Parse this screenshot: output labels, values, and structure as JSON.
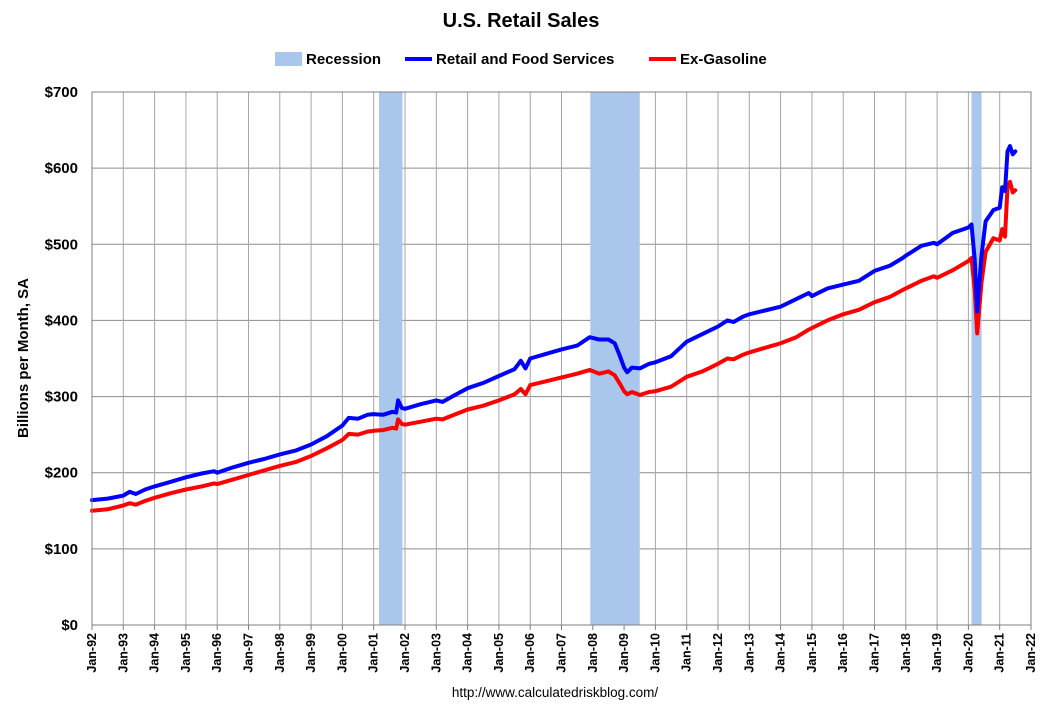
{
  "chart_data": {
    "type": "line",
    "title": "U.S. Retail Sales",
    "ylabel": "Billions per Month, SA",
    "xlabel": "",
    "source": "http://www.calculatedriskblog.com/",
    "ylim": [
      0,
      700
    ],
    "xlim": [
      1992.0,
      2022.0
    ],
    "yticks": [
      0,
      100,
      200,
      300,
      400,
      500,
      600,
      700
    ],
    "ytick_labels": [
      "$0",
      "$100",
      "$200",
      "$300",
      "$400",
      "$500",
      "$600",
      "$700"
    ],
    "xtick_labels": [
      "Jan-92",
      "Jan-93",
      "Jan-94",
      "Jan-95",
      "Jan-96",
      "Jan-97",
      "Jan-98",
      "Jan-99",
      "Jan-00",
      "Jan-01",
      "Jan-02",
      "Jan-03",
      "Jan-04",
      "Jan-05",
      "Jan-06",
      "Jan-07",
      "Jan-08",
      "Jan-09",
      "Jan-10",
      "Jan-11",
      "Jan-12",
      "Jan-13",
      "Jan-14",
      "Jan-15",
      "Jan-16",
      "Jan-17",
      "Jan-18",
      "Jan-19",
      "Jan-20",
      "Jan-21",
      "Jan-22"
    ],
    "grid": true,
    "legend_position": "top",
    "recessions": [
      {
        "start": 2001.17,
        "end": 2001.92
      },
      {
        "start": 2007.92,
        "end": 2009.5
      },
      {
        "start": 2020.1,
        "end": 2020.42
      }
    ],
    "series": [
      {
        "name": "Retail and Food Services",
        "color": "#0000ff",
        "points": [
          [
            1992.0,
            164
          ],
          [
            1992.5,
            166
          ],
          [
            1993.0,
            170
          ],
          [
            1993.2,
            175
          ],
          [
            1993.4,
            172
          ],
          [
            1993.7,
            178
          ],
          [
            1994.0,
            182
          ],
          [
            1994.5,
            188
          ],
          [
            1995.0,
            194
          ],
          [
            1995.5,
            199
          ],
          [
            1995.9,
            202
          ],
          [
            1996.0,
            200
          ],
          [
            1996.5,
            207
          ],
          [
            1997.0,
            213
          ],
          [
            1997.5,
            218
          ],
          [
            1998.0,
            224
          ],
          [
            1998.5,
            229
          ],
          [
            1999.0,
            237
          ],
          [
            1999.5,
            248
          ],
          [
            2000.0,
            262
          ],
          [
            2000.2,
            272
          ],
          [
            2000.5,
            271
          ],
          [
            2000.8,
            276
          ],
          [
            2001.0,
            277
          ],
          [
            2001.3,
            276
          ],
          [
            2001.6,
            280
          ],
          [
            2001.72,
            279
          ],
          [
            2001.78,
            295
          ],
          [
            2001.9,
            285
          ],
          [
            2002.0,
            284
          ],
          [
            2002.5,
            290
          ],
          [
            2003.0,
            295
          ],
          [
            2003.2,
            293
          ],
          [
            2003.5,
            300
          ],
          [
            2004.0,
            311
          ],
          [
            2004.5,
            318
          ],
          [
            2005.0,
            327
          ],
          [
            2005.5,
            336
          ],
          [
            2005.7,
            347
          ],
          [
            2005.85,
            337
          ],
          [
            2006.0,
            350
          ],
          [
            2006.5,
            356
          ],
          [
            2007.0,
            362
          ],
          [
            2007.5,
            367
          ],
          [
            2007.9,
            378
          ],
          [
            2008.2,
            375
          ],
          [
            2008.5,
            375
          ],
          [
            2008.7,
            370
          ],
          [
            2008.85,
            355
          ],
          [
            2009.0,
            338
          ],
          [
            2009.1,
            332
          ],
          [
            2009.25,
            338
          ],
          [
            2009.5,
            337
          ],
          [
            2009.8,
            343
          ],
          [
            2010.0,
            345
          ],
          [
            2010.5,
            353
          ],
          [
            2011.0,
            372
          ],
          [
            2011.5,
            382
          ],
          [
            2012.0,
            392
          ],
          [
            2012.3,
            400
          ],
          [
            2012.5,
            398
          ],
          [
            2012.8,
            405
          ],
          [
            2013.0,
            408
          ],
          [
            2013.5,
            413
          ],
          [
            2014.0,
            418
          ],
          [
            2014.5,
            428
          ],
          [
            2014.9,
            436
          ],
          [
            2015.0,
            432
          ],
          [
            2015.5,
            442
          ],
          [
            2016.0,
            447
          ],
          [
            2016.5,
            452
          ],
          [
            2017.0,
            465
          ],
          [
            2017.5,
            472
          ],
          [
            2017.9,
            482
          ],
          [
            2018.0,
            485
          ],
          [
            2018.5,
            498
          ],
          [
            2018.9,
            502
          ],
          [
            2019.0,
            500
          ],
          [
            2019.5,
            515
          ],
          [
            2020.0,
            522
          ],
          [
            2020.1,
            526
          ],
          [
            2020.2,
            480
          ],
          [
            2020.28,
            412
          ],
          [
            2020.42,
            485
          ],
          [
            2020.55,
            530
          ],
          [
            2020.8,
            545
          ],
          [
            2021.0,
            548
          ],
          [
            2021.08,
            575
          ],
          [
            2021.17,
            570
          ],
          [
            2021.25,
            622
          ],
          [
            2021.33,
            629
          ],
          [
            2021.42,
            618
          ],
          [
            2021.5,
            622
          ]
        ]
      },
      {
        "name": "Ex-Gasoline",
        "color": "#ff0000",
        "points": [
          [
            1992.0,
            150
          ],
          [
            1992.5,
            152
          ],
          [
            1993.0,
            157
          ],
          [
            1993.2,
            160
          ],
          [
            1993.4,
            158
          ],
          [
            1993.7,
            163
          ],
          [
            1994.0,
            167
          ],
          [
            1994.5,
            173
          ],
          [
            1995.0,
            178
          ],
          [
            1995.5,
            182
          ],
          [
            1995.9,
            186
          ],
          [
            1996.0,
            185
          ],
          [
            1996.5,
            191
          ],
          [
            1997.0,
            197
          ],
          [
            1997.5,
            203
          ],
          [
            1998.0,
            209
          ],
          [
            1998.5,
            214
          ],
          [
            1999.0,
            222
          ],
          [
            1999.5,
            232
          ],
          [
            2000.0,
            243
          ],
          [
            2000.2,
            251
          ],
          [
            2000.5,
            250
          ],
          [
            2000.8,
            254
          ],
          [
            2001.0,
            255
          ],
          [
            2001.3,
            256
          ],
          [
            2001.6,
            259
          ],
          [
            2001.72,
            258
          ],
          [
            2001.78,
            270
          ],
          [
            2001.9,
            264
          ],
          [
            2002.0,
            263
          ],
          [
            2002.5,
            267
          ],
          [
            2003.0,
            271
          ],
          [
            2003.2,
            270
          ],
          [
            2003.5,
            275
          ],
          [
            2004.0,
            283
          ],
          [
            2004.5,
            288
          ],
          [
            2005.0,
            295
          ],
          [
            2005.5,
            303
          ],
          [
            2005.7,
            310
          ],
          [
            2005.85,
            303
          ],
          [
            2006.0,
            315
          ],
          [
            2006.5,
            320
          ],
          [
            2007.0,
            325
          ],
          [
            2007.5,
            330
          ],
          [
            2007.9,
            335
          ],
          [
            2008.2,
            330
          ],
          [
            2008.5,
            333
          ],
          [
            2008.7,
            328
          ],
          [
            2008.85,
            318
          ],
          [
            2009.0,
            307
          ],
          [
            2009.1,
            303
          ],
          [
            2009.25,
            306
          ],
          [
            2009.5,
            302
          ],
          [
            2009.8,
            306
          ],
          [
            2010.0,
            307
          ],
          [
            2010.5,
            313
          ],
          [
            2011.0,
            326
          ],
          [
            2011.5,
            333
          ],
          [
            2012.0,
            343
          ],
          [
            2012.3,
            350
          ],
          [
            2012.5,
            349
          ],
          [
            2012.8,
            355
          ],
          [
            2013.0,
            358
          ],
          [
            2013.5,
            364
          ],
          [
            2014.0,
            370
          ],
          [
            2014.5,
            378
          ],
          [
            2014.9,
            388
          ],
          [
            2015.0,
            390
          ],
          [
            2015.5,
            400
          ],
          [
            2016.0,
            408
          ],
          [
            2016.5,
            414
          ],
          [
            2017.0,
            424
          ],
          [
            2017.5,
            431
          ],
          [
            2017.9,
            440
          ],
          [
            2018.0,
            442
          ],
          [
            2018.5,
            452
          ],
          [
            2018.9,
            458
          ],
          [
            2019.0,
            456
          ],
          [
            2019.5,
            466
          ],
          [
            2020.0,
            478
          ],
          [
            2020.1,
            482
          ],
          [
            2020.2,
            440
          ],
          [
            2020.28,
            383
          ],
          [
            2020.42,
            450
          ],
          [
            2020.55,
            490
          ],
          [
            2020.8,
            508
          ],
          [
            2021.0,
            505
          ],
          [
            2021.08,
            520
          ],
          [
            2021.17,
            510
          ],
          [
            2021.25,
            575
          ],
          [
            2021.33,
            582
          ],
          [
            2021.42,
            568
          ],
          [
            2021.5,
            571
          ]
        ]
      }
    ],
    "legend": [
      {
        "label": "Recession",
        "kind": "patch",
        "color": "#a9c7ec"
      },
      {
        "label": "Retail and Food Services",
        "kind": "line",
        "color": "#0000ff"
      },
      {
        "label": "Ex-Gasoline",
        "kind": "line",
        "color": "#ff0000"
      }
    ]
  }
}
